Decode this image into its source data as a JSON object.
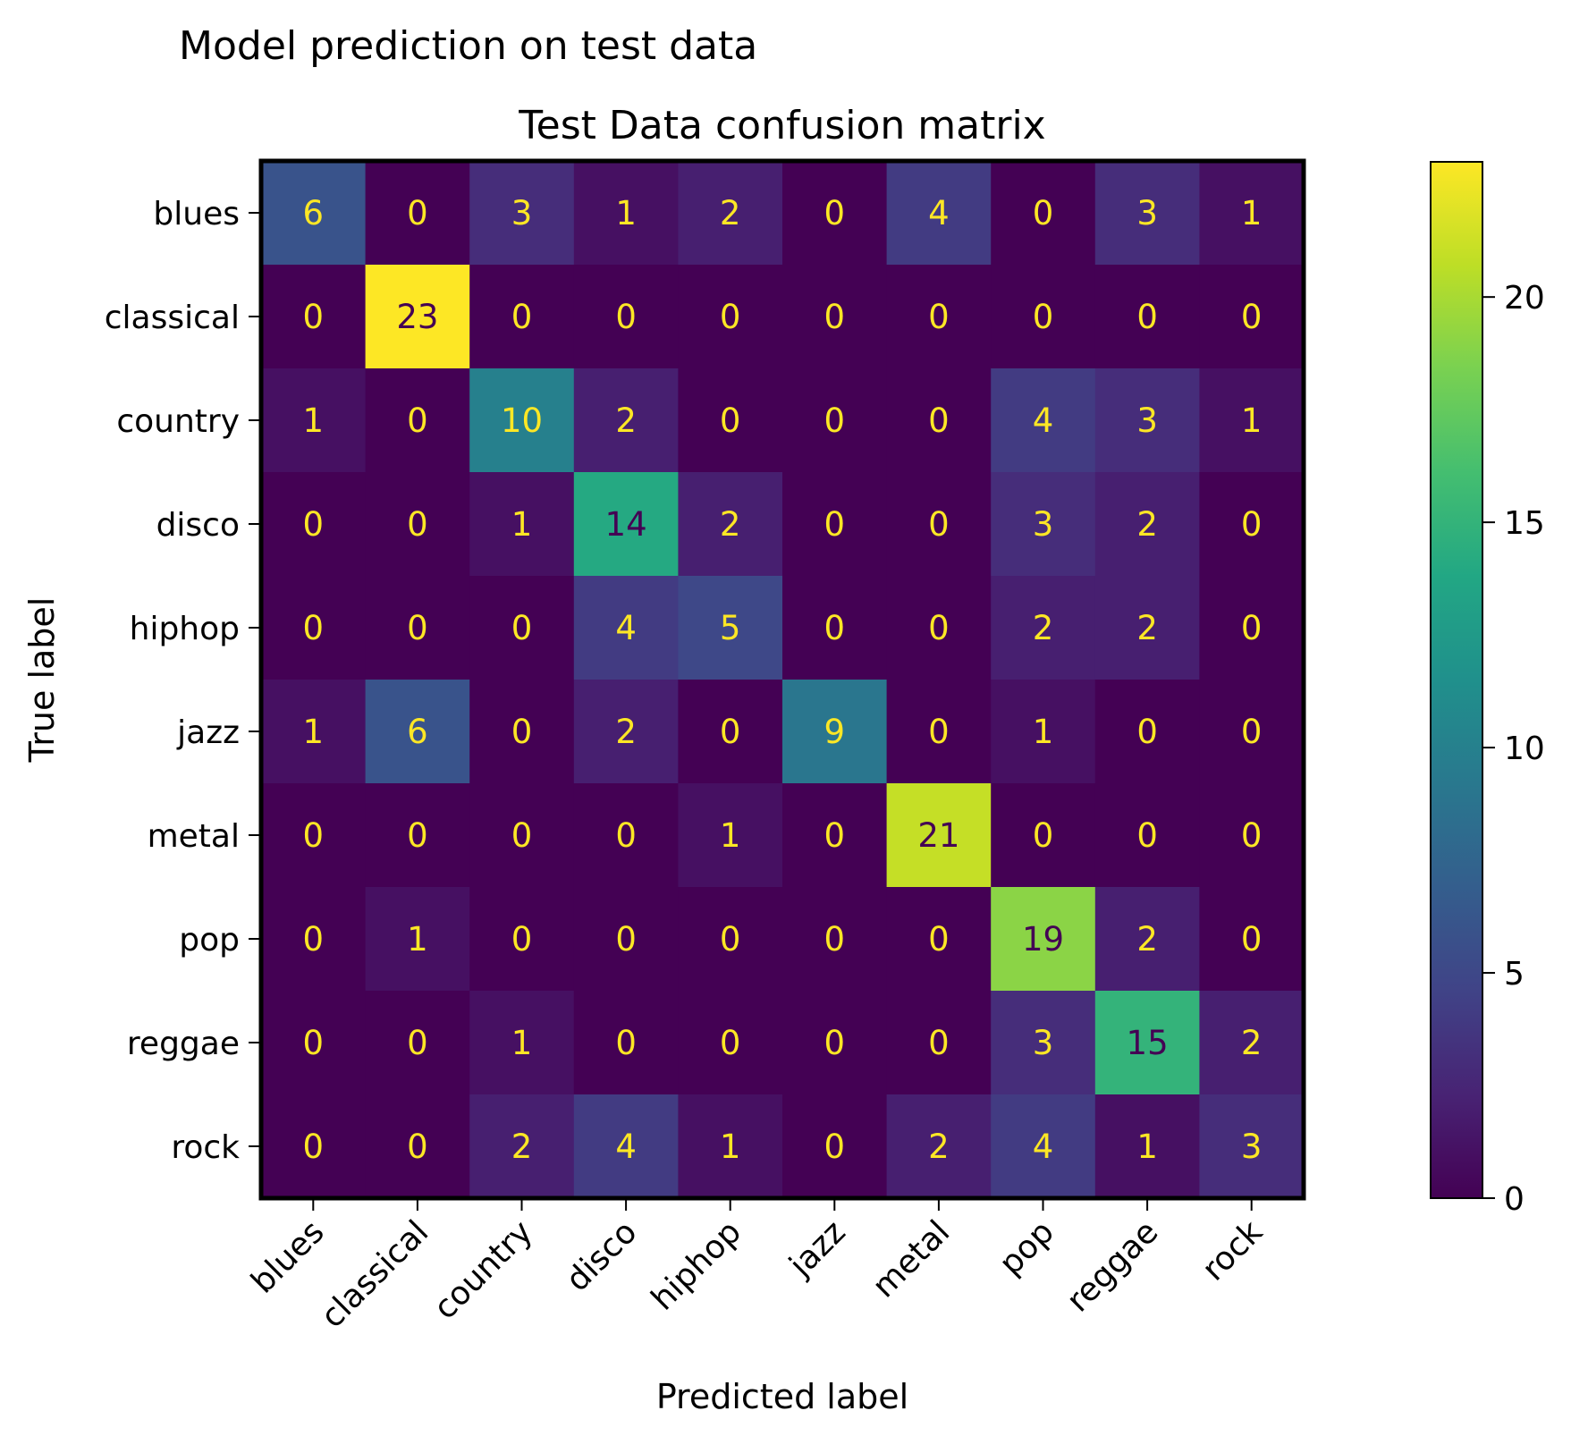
{
  "figure": {
    "suptitle": "Model prediction on test data"
  },
  "chart_data": {
    "type": "heatmap",
    "title": "Test Data confusion matrix",
    "xlabel": "Predicted label",
    "ylabel": "True label",
    "x_categories": [
      "blues",
      "classical",
      "country",
      "disco",
      "hiphop",
      "jazz",
      "metal",
      "pop",
      "reggae",
      "rock"
    ],
    "y_categories": [
      "blues",
      "classical",
      "country",
      "disco",
      "hiphop",
      "jazz",
      "metal",
      "pop",
      "reggae",
      "rock"
    ],
    "values": [
      [
        6,
        0,
        3,
        1,
        2,
        0,
        4,
        0,
        3,
        1
      ],
      [
        0,
        23,
        0,
        0,
        0,
        0,
        0,
        0,
        0,
        0
      ],
      [
        1,
        0,
        10,
        2,
        0,
        0,
        0,
        4,
        3,
        1
      ],
      [
        0,
        0,
        1,
        14,
        2,
        0,
        0,
        3,
        2,
        0
      ],
      [
        0,
        0,
        0,
        4,
        5,
        0,
        0,
        2,
        2,
        0
      ],
      [
        1,
        6,
        0,
        2,
        0,
        9,
        0,
        1,
        0,
        0
      ],
      [
        0,
        0,
        0,
        0,
        1,
        0,
        21,
        0,
        0,
        0
      ],
      [
        0,
        1,
        0,
        0,
        0,
        0,
        0,
        19,
        2,
        0
      ],
      [
        0,
        0,
        1,
        0,
        0,
        0,
        0,
        3,
        15,
        2
      ],
      [
        0,
        0,
        2,
        4,
        1,
        0,
        2,
        4,
        1,
        3
      ]
    ],
    "colormap": "viridis",
    "color_range": [
      0,
      23
    ],
    "colorbar_ticks": [
      0,
      5,
      10,
      15,
      20
    ],
    "text_color_light": "#fde725",
    "text_color_dark": "#440154",
    "grid": false
  }
}
